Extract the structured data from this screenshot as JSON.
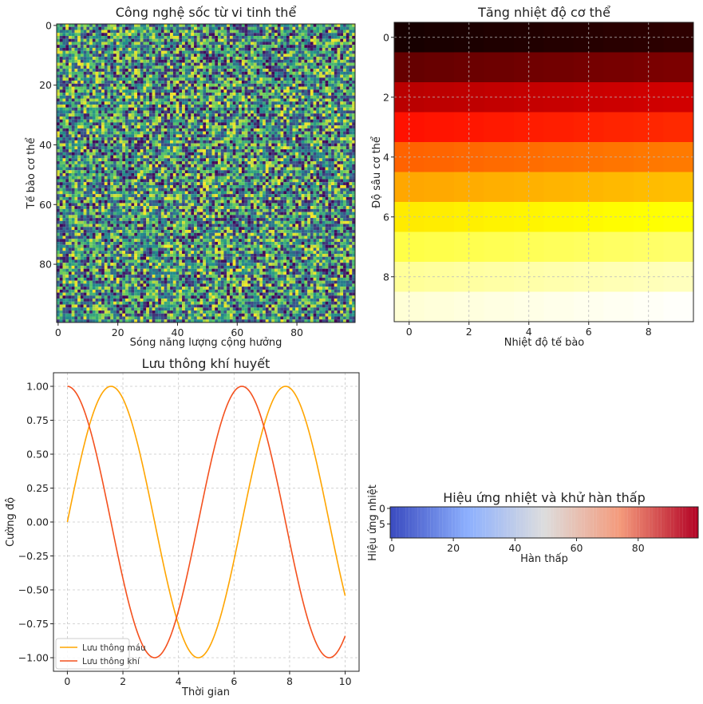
{
  "chart_data": [
    {
      "type": "heatmap",
      "title": "Công nghệ sốc từ vi tinh thể",
      "xlabel": "Sóng năng lượng cộng hưởng",
      "ylabel": "Tế bào cơ thể",
      "grid_size": [
        100,
        100
      ],
      "xticks": [
        0,
        20,
        40,
        60,
        80
      ],
      "yticks": [
        0,
        20,
        40,
        60,
        80
      ],
      "colormap": "viridis",
      "values": "random uniform noise in [0, 1]"
    },
    {
      "type": "heatmap",
      "title": "Tăng nhiệt độ cơ thể",
      "xlabel": "Nhiệt độ tế bào",
      "ylabel": "Độ sâu cơ thể",
      "grid_size": [
        10,
        10
      ],
      "xticks": [
        0,
        2,
        4,
        6,
        8
      ],
      "yticks": [
        0,
        2,
        4,
        6,
        8
      ],
      "colormap": "hot",
      "grid": true,
      "row_levels": [
        0.02,
        0.14,
        0.27,
        0.4,
        0.52,
        0.62,
        0.72,
        0.82,
        0.9,
        0.96
      ]
    },
    {
      "type": "line",
      "title": "Lưu thông khí huyết",
      "xlabel": "Thời gian",
      "ylabel": "Cường độ",
      "xlim": [
        -0.5,
        10.5
      ],
      "ylim": [
        -1.1,
        1.1
      ],
      "xticks": [
        0,
        2,
        4,
        6,
        8,
        10
      ],
      "yticks": [
        1.0,
        0.75,
        0.5,
        0.25,
        0.0,
        -0.25,
        -0.5,
        -0.75,
        -1.0
      ],
      "ytick_labels": [
        "1.00",
        "0.75",
        "0.50",
        "0.25",
        "0.00",
        "−0.25",
        "−0.50",
        "−0.75",
        "−1.00"
      ],
      "grid": true,
      "legend": "lower-left",
      "x_range": [
        0,
        10
      ],
      "series": [
        {
          "name": "Lưu thông máu",
          "function": "sin(x)",
          "color": "#ffa500"
        },
        {
          "name": "Lưu thông khí",
          "function": "cos(x)",
          "color": "#f4511e"
        }
      ]
    },
    {
      "type": "heatmap",
      "title": "Hiệu ứng nhiệt và khử hàn thấp",
      "xlabel": "Hàn thấp",
      "ylabel": "Hiệu ứng nhiệt",
      "grid_size": [
        10,
        100
      ],
      "xticks": [
        0,
        20,
        40,
        60,
        80
      ],
      "yticks": [
        0,
        5
      ],
      "colormap": "coolwarm",
      "values": "column index 0–99 increasing left to right"
    }
  ]
}
